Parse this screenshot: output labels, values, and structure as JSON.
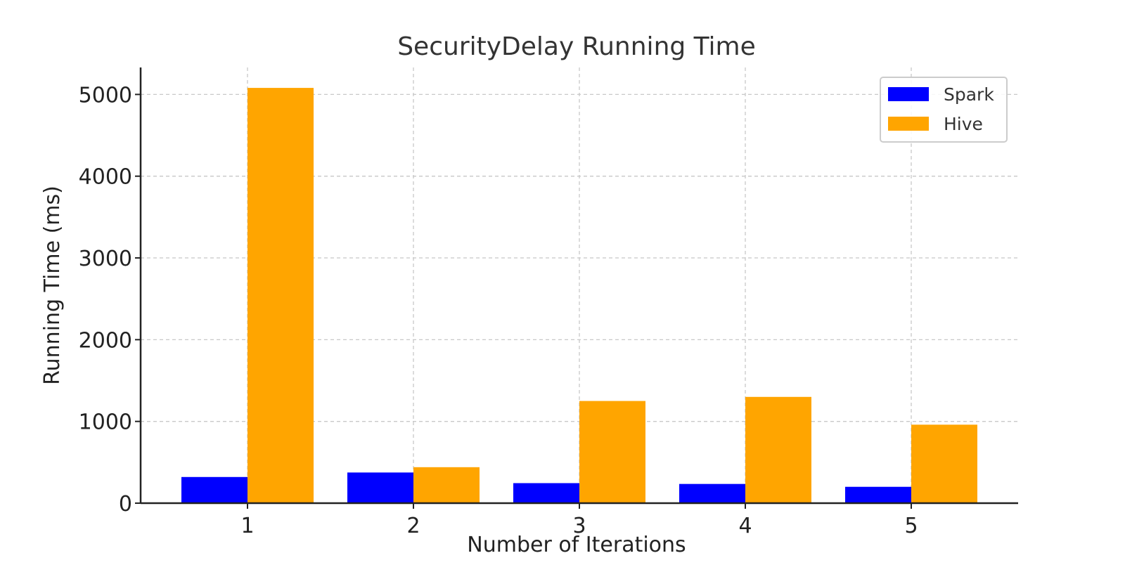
{
  "chart_data": {
    "type": "bar",
    "title": "SecurityDelay Running Time",
    "xlabel": "Number of Iterations",
    "ylabel": "Running Time (ms)",
    "categories": [
      "1",
      "2",
      "3",
      "4",
      "5"
    ],
    "series": [
      {
        "name": "Spark",
        "color": "#0000ff",
        "values": [
          320,
          375,
          245,
          235,
          200
        ]
      },
      {
        "name": "Hive",
        "color": "#ffa500",
        "values": [
          5080,
          440,
          1250,
          1300,
          960
        ]
      }
    ],
    "ylim": [
      0,
      5330
    ],
    "yticks": [
      0,
      1000,
      2000,
      3000,
      4000,
      5000
    ],
    "grid": true,
    "legend_position": "top-right"
  }
}
